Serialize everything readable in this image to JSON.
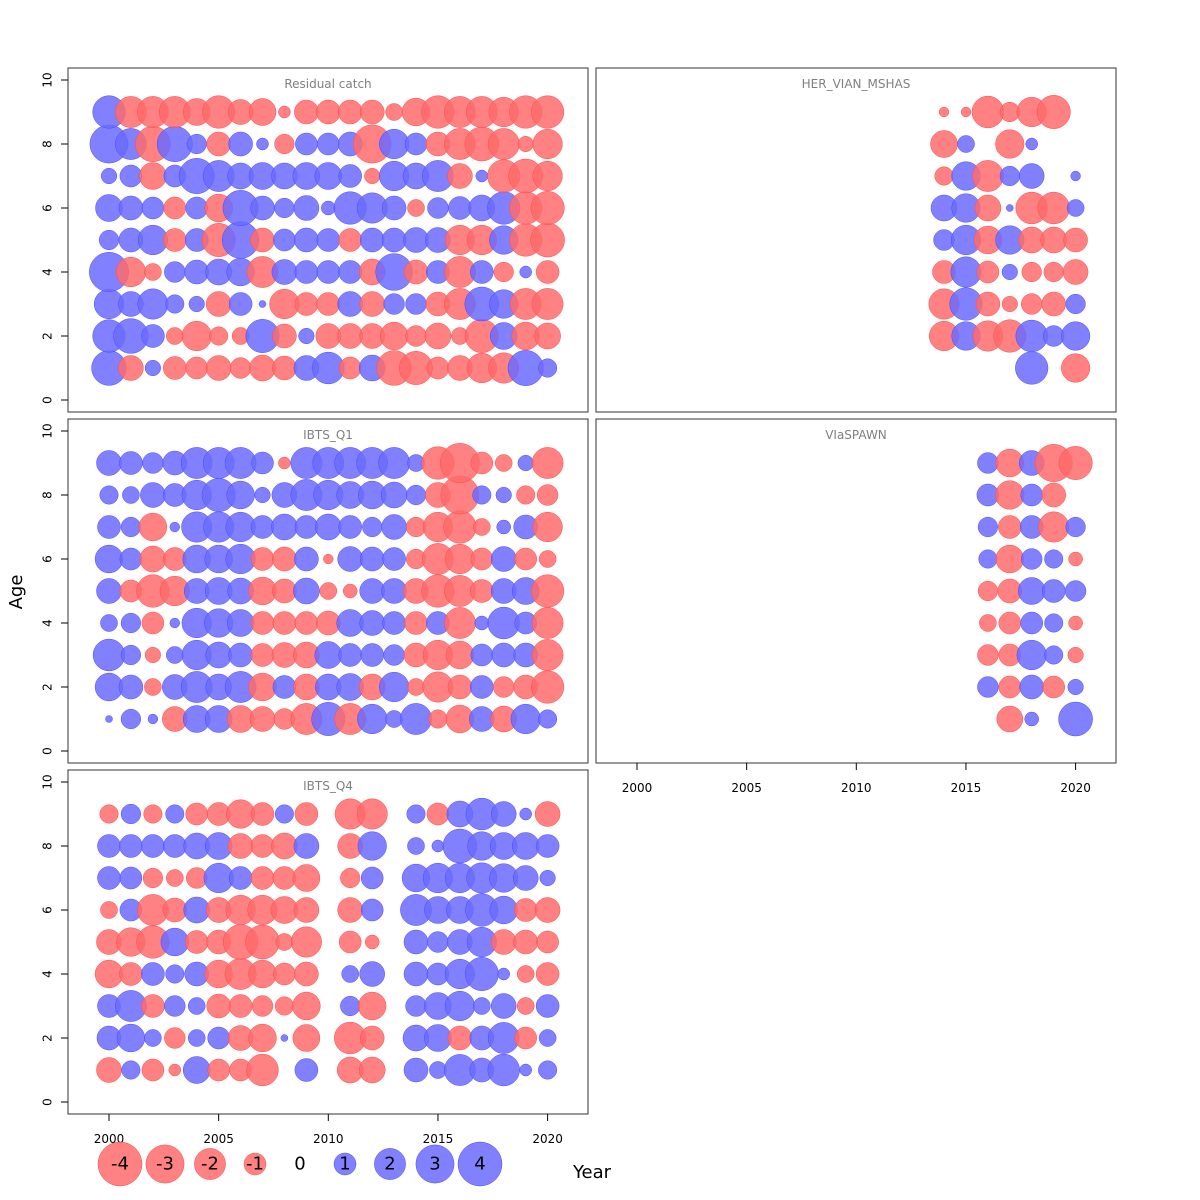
{
  "chart_data": {
    "type": "scatter",
    "subtype": "bubble-residuals",
    "xlabel": "Year",
    "ylabel": "Age",
    "xlim": [
      1998,
      2022
    ],
    "ylim": [
      0,
      10
    ],
    "x_ticks": [
      "2000",
      "2005",
      "2010",
      "2015",
      "2020"
    ],
    "y_ticks": [
      "0",
      "2",
      "4",
      "6",
      "8",
      "10"
    ],
    "colors": {
      "negative": "#ff6b6b",
      "positive": "#6b6bff"
    },
    "ages": [
      1,
      2,
      3,
      4,
      5,
      6,
      7,
      8,
      9
    ],
    "panels": [
      {
        "title": "Residual catch",
        "years": [
          2000,
          2001,
          2002,
          2003,
          2004,
          2005,
          2006,
          2007,
          2008,
          2009,
          2010,
          2011,
          2012,
          2013,
          2014,
          2015,
          2016,
          2017,
          2018,
          2019,
          2020
        ],
        "residuals_by_age": {
          "9": [
            2.2,
            -2.0,
            -2.0,
            -2.0,
            -1.5,
            -2.2,
            -1.3,
            -1.5,
            -0.3,
            -1.2,
            -1.2,
            -1.2,
            -1.2,
            -0.6,
            -1.6,
            -2.2,
            -2.0,
            -2.0,
            -1.8,
            -2.2,
            -2.2
          ],
          "8": [
            3.0,
            2.0,
            -2.6,
            2.6,
            0.8,
            -1.2,
            1.2,
            0.3,
            -0.8,
            1.0,
            1.0,
            1.2,
            -3.0,
            1.8,
            1.0,
            -1.2,
            -2.0,
            -2.4,
            -2.0,
            -0.5,
            -1.8
          ],
          "7": [
            0.5,
            1.0,
            -1.5,
            1.0,
            2.6,
            2.0,
            1.4,
            1.5,
            1.4,
            1.5,
            1.5,
            1.1,
            -0.5,
            1.8,
            1.4,
            2.0,
            -1.3,
            0.3,
            -2.2,
            -2.4,
            -1.8
          ],
          "6": [
            1.5,
            1.2,
            1.0,
            -1.0,
            1.0,
            -1.6,
            2.6,
            1.2,
            0.8,
            1.3,
            0.4,
            2.2,
            1.9,
            1.2,
            -0.6,
            0.9,
            1.1,
            1.4,
            2.2,
            -2.2,
            -2.3
          ],
          "5": [
            0.8,
            1.2,
            1.8,
            -1.1,
            1.1,
            -2.3,
            2.8,
            -1.2,
            1.0,
            1.2,
            1.1,
            -1.1,
            1.2,
            1.2,
            1.3,
            1.3,
            -1.8,
            -1.8,
            1.7,
            -2.2,
            -2.4
          ],
          "4": [
            3.2,
            -1.8,
            -0.6,
            0.9,
            1.2,
            1.4,
            1.6,
            -2.0,
            1.3,
            1.1,
            1.1,
            1.1,
            -1.4,
            2.8,
            -1.2,
            1.1,
            -2.0,
            1.1,
            -0.8,
            0.3,
            -1.1
          ],
          "3": [
            1.8,
            1.3,
            1.9,
            0.7,
            0.5,
            -1.3,
            1.1,
            0.1,
            -1.8,
            -1.1,
            -1.1,
            1.3,
            -1.3,
            0.9,
            0.9,
            -1.2,
            -2.0,
            2.4,
            1.7,
            -2.0,
            -2.0
          ],
          "2": [
            2.2,
            2.5,
            1.1,
            -0.6,
            -1.8,
            -0.7,
            -0.6,
            2.3,
            -1.2,
            0.5,
            -1.3,
            -1.3,
            -1.3,
            -1.6,
            -0.9,
            -1.4,
            -0.6,
            -2.3,
            1.5,
            -1.6,
            -1.4
          ],
          "1": [
            2.5,
            -1.3,
            0.5,
            -1.1,
            -1.0,
            -1.3,
            -0.9,
            -1.4,
            -1.2,
            1.3,
            2.1,
            -1.0,
            1.4,
            -2.5,
            -2.3,
            -1.0,
            -1.3,
            -1.8,
            -1.9,
            2.6,
            0.7
          ]
        }
      },
      {
        "title": "HER_VIAN_MSHAS",
        "years": [
          2014,
          2015,
          2016,
          2017,
          2018,
          2019,
          2020
        ],
        "residuals_by_age": {
          "9": [
            -0.2,
            -0.2,
            -2.1,
            -0.8,
            -1.8,
            -2.3,
            null
          ],
          "8": [
            -1.5,
            0.6,
            null,
            -1.7,
            0.3,
            null,
            null
          ],
          "7": [
            -0.7,
            1.7,
            -2.0,
            0.8,
            1.3,
            null,
            0.2
          ],
          "6": [
            1.4,
            1.7,
            -1.4,
            0.1,
            -2.1,
            -2.1,
            0.6
          ],
          "5": [
            0.9,
            1.8,
            -1.6,
            1.7,
            -1.4,
            -1.4,
            -1.2
          ],
          "4": [
            -1.1,
            1.9,
            -1.0,
            0.5,
            -0.8,
            -0.8,
            -1.3
          ],
          "3": [
            -1.9,
            2.2,
            -1.2,
            -0.5,
            -0.9,
            -1.2,
            0.8
          ],
          "2": [
            -1.8,
            1.7,
            -1.9,
            -2.2,
            2.1,
            0.9,
            1.7
          ],
          "1": [
            null,
            null,
            null,
            null,
            2.2,
            null,
            -1.7
          ]
        }
      },
      {
        "title": "IBTS_Q1",
        "years": [
          2000,
          2001,
          2002,
          2003,
          2004,
          2005,
          2006,
          2007,
          2008,
          2009,
          2010,
          2011,
          2012,
          2013,
          2014,
          2015,
          2016,
          2017,
          2018,
          2019,
          2020
        ],
        "residuals_by_age": {
          "9": [
            1.3,
            1.1,
            0.9,
            1.2,
            2.0,
            2.0,
            2.0,
            1.0,
            -0.3,
            2.0,
            2.0,
            2.0,
            2.0,
            2.0,
            0.6,
            -2.2,
            -3.2,
            -1.0,
            -0.6,
            0.5,
            -2.0
          ],
          "8": [
            0.7,
            0.6,
            1.3,
            1.1,
            1.8,
            2.3,
            1.6,
            0.5,
            1.3,
            2.0,
            1.8,
            1.5,
            1.6,
            1.4,
            0.8,
            -1.3,
            -3.0,
            0.7,
            0.5,
            -0.7,
            -0.9
          ],
          "7": [
            1.1,
            0.8,
            -1.6,
            0.2,
            1.9,
            1.9,
            1.8,
            1.1,
            1.4,
            1.1,
            1.4,
            1.1,
            0.8,
            1.3,
            -0.8,
            -1.8,
            -2.2,
            -0.6,
            0.4,
            1.2,
            -1.8
          ],
          "6": [
            1.6,
            1.0,
            -1.4,
            -1.1,
            1.6,
            1.6,
            1.8,
            -1.1,
            -1.2,
            1.2,
            -0.2,
            1.3,
            1.2,
            1.1,
            -0.8,
            -2.0,
            -1.8,
            -1.0,
            1.3,
            -1.0,
            -0.6
          ],
          "5": [
            1.3,
            -1.0,
            -2.2,
            -1.8,
            1.3,
            1.5,
            1.4,
            -1.6,
            -1.2,
            1.4,
            -0.6,
            -0.4,
            1.3,
            1.3,
            -1.3,
            -2.2,
            -2.0,
            -1.1,
            1.3,
            1.5,
            -2.2
          ],
          "4": [
            0.6,
            0.8,
            -1.0,
            0.2,
            1.8,
            1.7,
            1.5,
            -1.1,
            -1.1,
            -1.1,
            -1.2,
            1.5,
            1.3,
            1.1,
            -1.1,
            1.1,
            -2.0,
            0.4,
            2.1,
            1.0,
            -2.0
          ],
          "3": [
            2.1,
            0.8,
            -0.5,
            0.6,
            1.8,
            1.4,
            1.2,
            -1.1,
            -1.3,
            -1.4,
            1.5,
            1.1,
            1.1,
            0.9,
            -1.2,
            -1.8,
            -1.6,
            1.0,
            1.2,
            1.2,
            -2.0
          ],
          "2": [
            1.6,
            1.2,
            -0.6,
            1.3,
            2.0,
            1.4,
            2.0,
            -1.6,
            1.1,
            -1.4,
            1.4,
            1.5,
            -1.4,
            1.8,
            -0.6,
            -1.9,
            -1.2,
            1.1,
            -0.9,
            -1.2,
            -2.2
          ],
          "1": [
            0.1,
            0.8,
            0.2,
            -1.3,
            1.5,
            1.5,
            -1.5,
            -1.3,
            -0.9,
            -2.0,
            2.3,
            -2.0,
            1.8,
            0.6,
            2.0,
            -0.7,
            -1.6,
            1.3,
            -1.4,
            1.8,
            0.7
          ]
        }
      },
      {
        "title": "VIaSPAWN",
        "years": [
          2016,
          2017,
          2018,
          2019,
          2020
        ],
        "residuals_by_age": {
          "9": [
            0.9,
            -1.6,
            1.3,
            -2.9,
            -2.3
          ],
          "8": [
            1.0,
            -1.7,
            1.0,
            -1.2,
            null
          ],
          "7": [
            0.8,
            -1.1,
            1.1,
            -1.9,
            0.8
          ],
          "6": [
            0.7,
            -1.6,
            0.9,
            0.7,
            -0.4
          ],
          "5": [
            -0.8,
            -1.2,
            1.5,
            1.1,
            0.9
          ],
          "4": [
            -0.6,
            -1.0,
            1.0,
            0.7,
            -0.4
          ],
          "3": [
            -0.9,
            -1.0,
            1.8,
            0.7,
            -0.5
          ],
          "2": [
            0.9,
            -1.0,
            1.2,
            -1.0,
            0.5
          ],
          "1": [
            null,
            -1.4,
            0.4,
            null,
            2.4
          ]
        }
      },
      {
        "title": "IBTS_Q4",
        "years": [
          2000,
          2001,
          2002,
          2003,
          2004,
          2005,
          2006,
          2007,
          2008,
          2009,
          2010,
          2011,
          2012,
          2013,
          2014,
          2015,
          2016,
          2017,
          2018,
          2019,
          2020
        ],
        "residuals_by_age": {
          "9": [
            -0.7,
            0.8,
            -0.7,
            0.7,
            -1.0,
            -1.1,
            -1.7,
            -1.1,
            0.7,
            -1.1,
            null,
            -1.9,
            -1.9,
            null,
            0.7,
            -1.0,
            1.4,
            2.1,
            1.3,
            0.3,
            -1.3
          ],
          "8": [
            1.1,
            1.1,
            1.1,
            1.1,
            1.4,
            1.5,
            -1.3,
            -1.1,
            -1.4,
            1.3,
            null,
            -1.3,
            1.7,
            null,
            0.6,
            0.3,
            2.4,
            1.7,
            1.5,
            1.5,
            1.1
          ],
          "7": [
            1.1,
            1.0,
            -0.8,
            -0.6,
            -0.9,
            1.8,
            1.1,
            -1.1,
            -1.1,
            -1.5,
            null,
            -0.8,
            1.0,
            null,
            1.6,
            1.8,
            1.8,
            1.9,
            1.7,
            1.3,
            0.5
          ],
          "6": [
            -0.6,
            1.0,
            -2.0,
            -1.2,
            1.4,
            -1.3,
            -1.8,
            -1.8,
            -1.5,
            -1.3,
            null,
            -1.3,
            1.0,
            null,
            2.0,
            1.5,
            1.5,
            2.2,
            1.6,
            -1.1,
            -1.3
          ],
          "5": [
            -1.3,
            -1.7,
            -2.2,
            1.6,
            -1.1,
            -1.2,
            -2.5,
            -2.4,
            -0.6,
            -1.9,
            null,
            -1.0,
            -0.4,
            null,
            1.2,
            0.9,
            1.3,
            1.8,
            -1.3,
            -1.2,
            -1.0
          ],
          "4": [
            -1.6,
            -1.1,
            1.1,
            0.7,
            1.2,
            -1.6,
            -2.0,
            -1.6,
            -1.0,
            -1.2,
            null,
            0.6,
            1.3,
            null,
            1.2,
            1.0,
            1.8,
            2.3,
            0.3,
            -0.6,
            -1.1
          ],
          "3": [
            1.1,
            2.0,
            -1.1,
            0.9,
            0.6,
            -1.2,
            -1.1,
            -0.9,
            -0.7,
            -1.6,
            null,
            0.8,
            -1.6,
            null,
            0.9,
            1.5,
            1.8,
            0.6,
            1.3,
            -0.6,
            1.1
          ],
          "2": [
            1.2,
            1.6,
            0.6,
            -0.9,
            0.6,
            1.0,
            -1.3,
            -1.6,
            0.1,
            -1.5,
            null,
            -2.1,
            -1.2,
            null,
            1.4,
            1.5,
            -1.2,
            1.2,
            2.0,
            -1.0,
            0.6
          ],
          "1": [
            -1.3,
            0.7,
            -1.0,
            -0.3,
            1.5,
            -1.0,
            -1.0,
            -2.1,
            null,
            1.1,
            null,
            -1.4,
            -1.4,
            null,
            1.2,
            0.6,
            2.0,
            1.2,
            2.1,
            0.3,
            0.7
          ]
        }
      }
    ],
    "legend": {
      "values": [
        -4,
        -3,
        -2,
        -1,
        0,
        1,
        2,
        3,
        4
      ],
      "labels": [
        "-4",
        "-3",
        "-2",
        "-1",
        "0",
        "1",
        "2",
        "3",
        "4"
      ]
    }
  }
}
